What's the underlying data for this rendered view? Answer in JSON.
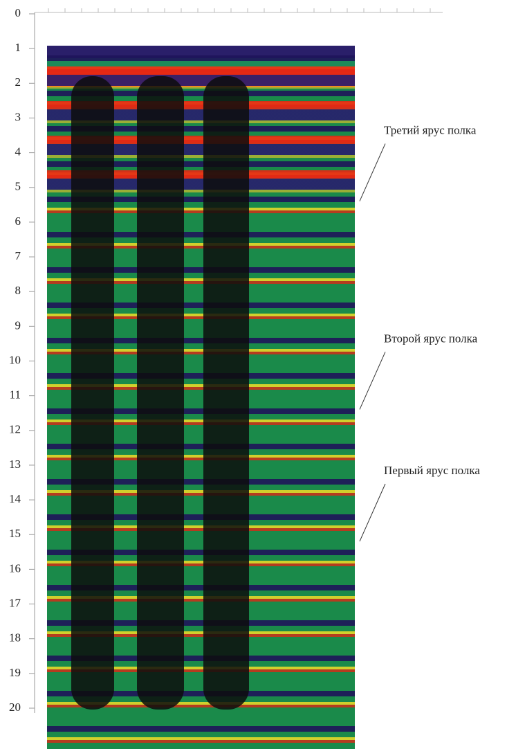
{
  "chart_data": {
    "type": "depth-profile",
    "ylim": [
      0,
      20
    ],
    "yticks": [
      0,
      1,
      2,
      3,
      4,
      5,
      6,
      7,
      8,
      9,
      10,
      11,
      12,
      13,
      14,
      15,
      16,
      17,
      18,
      19,
      20
    ],
    "annotations": [
      {
        "text": "Третий ярус полка",
        "y": 3.5
      },
      {
        "text": "Второй ярус полка",
        "y": 9.5
      },
      {
        "text": "Первый ярус полка",
        "y": 13.3
      }
    ]
  }
}
